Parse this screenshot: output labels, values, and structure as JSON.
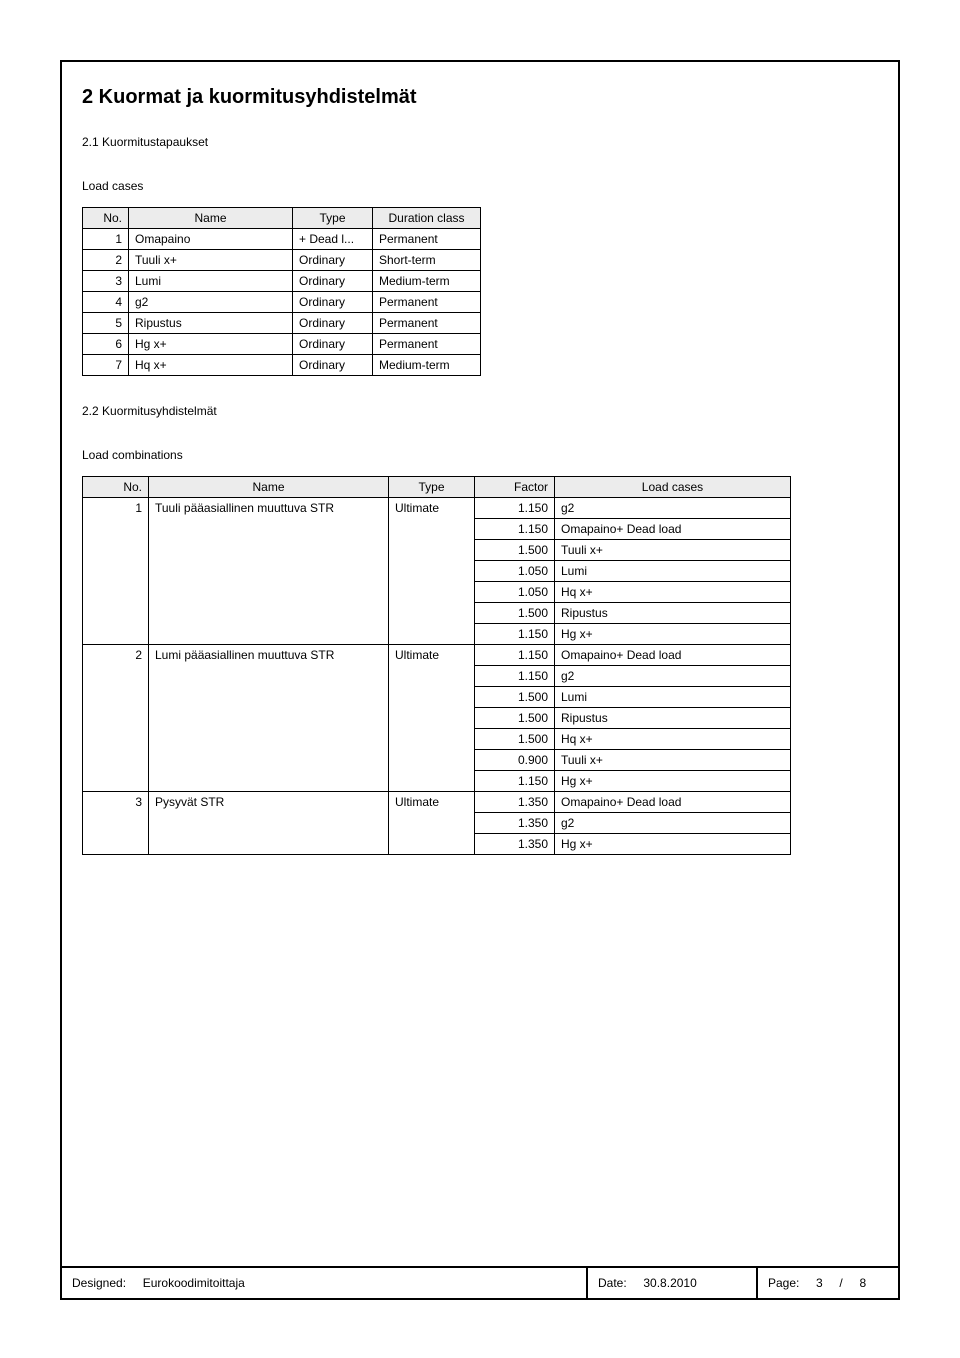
{
  "section": {
    "title": "2 Kuormat ja kuormitusyhdistelmät",
    "sub1": "2.1 Kuormitustapaukset",
    "caption1": "Load cases",
    "sub2": "2.2 Kuormitusyhdistelmät",
    "caption2": "Load combinations"
  },
  "table1": {
    "headers": {
      "no": "No.",
      "name": "Name",
      "type": "Type",
      "dur": "Duration class"
    },
    "rows": [
      {
        "no": "1",
        "name": "Omapaino",
        "type": "+ Dead l...",
        "dur": "Permanent"
      },
      {
        "no": "2",
        "name": "Tuuli x+",
        "type": "Ordinary",
        "dur": "Short-term"
      },
      {
        "no": "3",
        "name": "Lumi",
        "type": "Ordinary",
        "dur": "Medium-term"
      },
      {
        "no": "4",
        "name": "g2",
        "type": "Ordinary",
        "dur": "Permanent"
      },
      {
        "no": "5",
        "name": "Ripustus",
        "type": "Ordinary",
        "dur": "Permanent"
      },
      {
        "no": "6",
        "name": "Hg x+",
        "type": "Ordinary",
        "dur": "Permanent"
      },
      {
        "no": "7",
        "name": "Hq x+",
        "type": "Ordinary",
        "dur": "Medium-term"
      }
    ]
  },
  "table2": {
    "headers": {
      "no": "No.",
      "name": "Name",
      "type": "Type",
      "factor": "Factor",
      "lc": "Load cases"
    },
    "groups": [
      {
        "no": "1",
        "name": "Tuuli pääasiallinen muuttuva STR",
        "type": "Ultimate",
        "items": [
          {
            "factor": "1.150",
            "lc": "g2"
          },
          {
            "factor": "1.150",
            "lc": "Omapaino+ Dead load"
          },
          {
            "factor": "1.500",
            "lc": "Tuuli x+"
          },
          {
            "factor": "1.050",
            "lc": "Lumi"
          },
          {
            "factor": "1.050",
            "lc": "Hq x+"
          },
          {
            "factor": "1.500",
            "lc": "Ripustus"
          },
          {
            "factor": "1.150",
            "lc": "Hg x+"
          }
        ]
      },
      {
        "no": "2",
        "name": "Lumi pääasiallinen muuttuva STR",
        "type": "Ultimate",
        "items": [
          {
            "factor": "1.150",
            "lc": "Omapaino+ Dead load"
          },
          {
            "factor": "1.150",
            "lc": "g2"
          },
          {
            "factor": "1.500",
            "lc": "Lumi"
          },
          {
            "factor": "1.500",
            "lc": "Ripustus"
          },
          {
            "factor": "1.500",
            "lc": "Hq x+"
          },
          {
            "factor": "0.900",
            "lc": "Tuuli x+"
          },
          {
            "factor": "1.150",
            "lc": "Hg x+"
          }
        ]
      },
      {
        "no": "3",
        "name": "Pysyvät STR",
        "type": "Ultimate",
        "items": [
          {
            "factor": "1.350",
            "lc": "Omapaino+ Dead load"
          },
          {
            "factor": "1.350",
            "lc": "g2"
          },
          {
            "factor": "1.350",
            "lc": "Hg x+"
          }
        ]
      }
    ]
  },
  "footer": {
    "designed_label": "Designed:",
    "designed_value": "Eurokoodimitoittaja",
    "date_label": "Date:",
    "date_value": "30.8.2010",
    "page_label": "Page:",
    "page_current": "3",
    "page_sep": "/",
    "page_total": "8"
  }
}
